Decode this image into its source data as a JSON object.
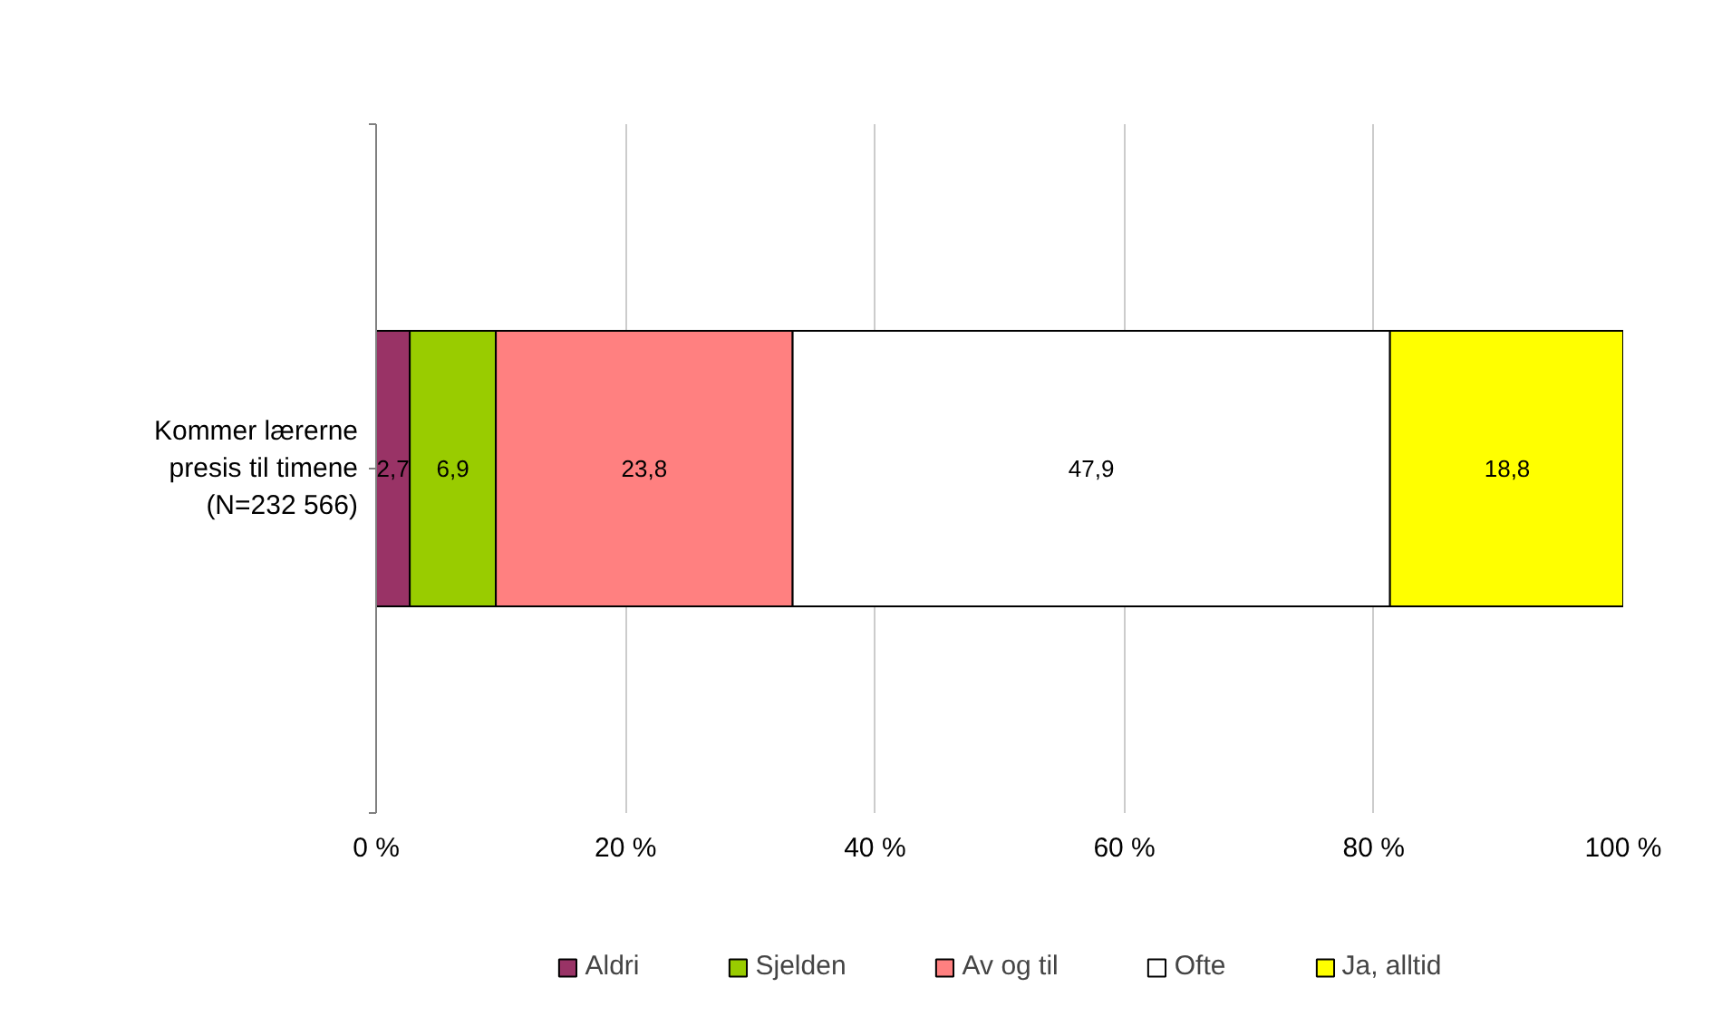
{
  "chart_data": {
    "type": "bar",
    "orientation": "horizontal",
    "stacked": true,
    "categories": [
      "Kommer lærerne\npresis til timene\n(N=232 566)"
    ],
    "series": [
      {
        "name": "Aldri",
        "color": "#993366",
        "values": [
          2.7
        ],
        "value_labels": [
          "2,7"
        ]
      },
      {
        "name": "Sjelden",
        "color": "#99cc00",
        "values": [
          6.9
        ],
        "value_labels": [
          "6,9"
        ]
      },
      {
        "name": "Av og til",
        "color": "#ff8080",
        "values": [
          23.8
        ],
        "value_labels": [
          "23,8"
        ]
      },
      {
        "name": "Ofte",
        "color": "#ffffff",
        "values": [
          47.9
        ],
        "value_labels": [
          "47,9"
        ]
      },
      {
        "name": "Ja, alltid",
        "color": "#ffff00",
        "values": [
          18.8
        ],
        "value_labels": [
          "18,8"
        ]
      }
    ],
    "xlim": [
      0,
      100
    ],
    "xticks": [
      {
        "value": 0,
        "label": "0 %"
      },
      {
        "value": 20,
        "label": "20 %"
      },
      {
        "value": 40,
        "label": "40 %"
      },
      {
        "value": 60,
        "label": "60 %"
      },
      {
        "value": 80,
        "label": "80 %"
      },
      {
        "value": 100,
        "label": "100 %"
      }
    ],
    "grid": "x",
    "legend": "bottom"
  }
}
